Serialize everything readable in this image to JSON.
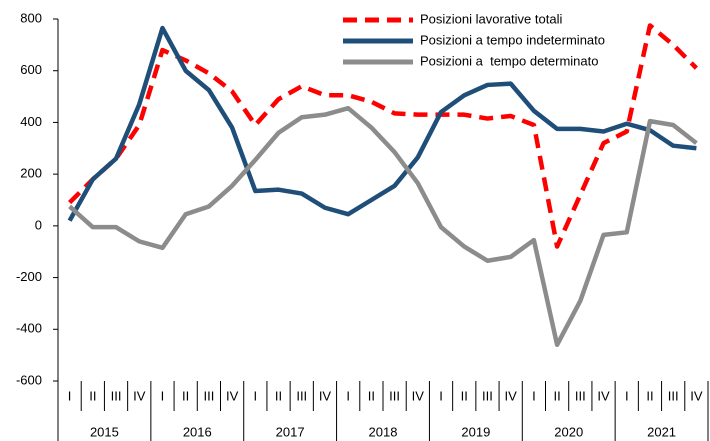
{
  "chart_data": {
    "type": "line",
    "categories": [
      "I",
      "II",
      "III",
      "IV",
      "I",
      "II",
      "III",
      "IV",
      "I",
      "II",
      "III",
      "IV",
      "I",
      "II",
      "III",
      "IV",
      "I",
      "II",
      "III",
      "IV",
      "I",
      "II",
      "III",
      "IV",
      "I",
      "II",
      "III",
      "IV"
    ],
    "groups": [
      "2015",
      "2016",
      "2017",
      "2018",
      "2019",
      "2020",
      "2021"
    ],
    "series": [
      {
        "name": "Posizioni lavorative totali",
        "color": "#ff0000",
        "style": "dashed",
        "values": [
          90,
          180,
          260,
          390,
          680,
          640,
          590,
          520,
          390,
          490,
          540,
          505,
          505,
          480,
          435,
          430,
          430,
          430,
          415,
          425,
          390,
          -80,
          120,
          320,
          365,
          775,
          700,
          610
        ]
      },
      {
        "name": "Posizioni a tempo indeterminato",
        "color": "#1f4e79",
        "style": "solid",
        "values": [
          20,
          180,
          260,
          470,
          765,
          600,
          525,
          380,
          135,
          140,
          125,
          70,
          45,
          100,
          155,
          265,
          440,
          505,
          545,
          550,
          445,
          375,
          375,
          365,
          395,
          370,
          310,
          300
        ]
      },
      {
        "name": "Posizioni a  tempo determinato",
        "color": "#8c8c8c",
        "style": "solid",
        "values": [
          75,
          -5,
          -5,
          -60,
          -85,
          45,
          75,
          155,
          255,
          360,
          420,
          430,
          455,
          380,
          285,
          165,
          -5,
          -80,
          -135,
          -120,
          -55,
          -460,
          -290,
          -35,
          -25,
          405,
          390,
          320
        ]
      }
    ],
    "ylim": [
      -600,
      800
    ],
    "yticks": [
      -600,
      -400,
      -200,
      0,
      200,
      400,
      600,
      800
    ],
    "grid": false,
    "legend": "top-right"
  }
}
